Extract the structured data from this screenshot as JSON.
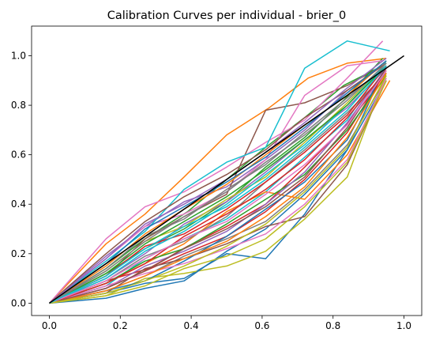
{
  "chart_data": {
    "type": "line",
    "title": "Calibration Curves per individual - brier_0",
    "xlabel": "",
    "ylabel": "",
    "xlim": [
      -0.05,
      1.05
    ],
    "ylim": [
      -0.05,
      1.12
    ],
    "xticks": [
      0.0,
      0.2,
      0.4,
      0.6,
      0.8,
      1.0
    ],
    "yticks": [
      0.0,
      0.2,
      0.4,
      0.6,
      0.8,
      1.0
    ],
    "xtick_labels": [
      "0.0",
      "0.2",
      "0.4",
      "0.6",
      "0.8",
      "1.0"
    ],
    "ytick_labels": [
      "0.0",
      "0.2",
      "0.4",
      "0.6",
      "0.8",
      "1.0"
    ],
    "grid": false,
    "legend": "none",
    "reference_line": {
      "x": [
        0,
        1
      ],
      "y": [
        0,
        1
      ],
      "color": "#000000"
    },
    "palette": [
      "#1f77b4",
      "#ff7f0e",
      "#2ca02c",
      "#d62728",
      "#9467bd",
      "#8c564b",
      "#e377c2",
      "#7f7f7f",
      "#bcbd22",
      "#17becf"
    ],
    "series": [
      {
        "x": [
          0,
          0.16,
          0.27,
          0.38,
          0.5,
          0.61,
          0.72,
          0.84,
          0.94
        ],
        "y": [
          0,
          0.04,
          0.08,
          0.1,
          0.2,
          0.18,
          0.36,
          0.62,
          0.93
        ]
      },
      {
        "x": [
          0,
          0.16,
          0.27,
          0.38,
          0.5,
          0.62,
          0.73,
          0.84,
          0.95
        ],
        "y": [
          0,
          0.24,
          0.36,
          0.51,
          0.68,
          0.79,
          0.91,
          0.97,
          0.99
        ]
      },
      {
        "x": [
          0,
          0.16,
          0.27,
          0.39,
          0.5,
          0.61,
          0.72,
          0.83,
          0.94
        ],
        "y": [
          0,
          0.14,
          0.26,
          0.37,
          0.5,
          0.63,
          0.75,
          0.88,
          0.96
        ]
      },
      {
        "x": [
          0,
          0.16,
          0.28,
          0.39,
          0.5,
          0.61,
          0.72,
          0.83,
          0.94
        ],
        "y": [
          0,
          0.09,
          0.14,
          0.23,
          0.31,
          0.4,
          0.55,
          0.71,
          0.9
        ]
      },
      {
        "x": [
          0,
          0.16,
          0.27,
          0.38,
          0.5,
          0.61,
          0.72,
          0.84,
          0.95
        ],
        "y": [
          0,
          0.19,
          0.31,
          0.41,
          0.47,
          0.58,
          0.7,
          0.86,
          0.97
        ]
      },
      {
        "x": [
          0,
          0.16,
          0.27,
          0.38,
          0.5,
          0.61,
          0.72,
          0.84,
          0.94
        ],
        "y": [
          0,
          0.11,
          0.26,
          0.35,
          0.44,
          0.78,
          0.81,
          0.88,
          0.96
        ]
      },
      {
        "x": [
          0,
          0.16,
          0.27,
          0.38,
          0.5,
          0.61,
          0.72,
          0.84,
          0.94
        ],
        "y": [
          0,
          0.26,
          0.39,
          0.45,
          0.55,
          0.65,
          0.74,
          0.91,
          1.06
        ]
      },
      {
        "x": [
          0,
          0.16,
          0.27,
          0.38,
          0.5,
          0.61,
          0.72,
          0.84,
          0.95
        ],
        "y": [
          0,
          0.05,
          0.11,
          0.19,
          0.26,
          0.33,
          0.46,
          0.64,
          0.91
        ]
      },
      {
        "x": [
          0,
          0.16,
          0.27,
          0.38,
          0.5,
          0.61,
          0.72,
          0.84,
          0.95
        ],
        "y": [
          0,
          0.03,
          0.1,
          0.12,
          0.15,
          0.21,
          0.34,
          0.51,
          0.93
        ]
      },
      {
        "x": [
          0,
          0.16,
          0.27,
          0.38,
          0.5,
          0.61,
          0.72,
          0.84,
          0.95
        ],
        "y": [
          0,
          0.07,
          0.18,
          0.26,
          0.34,
          0.45,
          0.59,
          0.74,
          0.98
        ]
      },
      {
        "x": [
          0,
          0.16,
          0.27,
          0.38,
          0.5,
          0.61,
          0.72,
          0.84,
          0.95
        ],
        "y": [
          0,
          0.02,
          0.06,
          0.09,
          0.21,
          0.3,
          0.44,
          0.62,
          0.9
        ]
      },
      {
        "x": [
          0,
          0.16,
          0.27,
          0.38,
          0.5,
          0.61,
          0.72,
          0.84,
          0.96
        ],
        "y": [
          0,
          0.08,
          0.16,
          0.24,
          0.37,
          0.45,
          0.42,
          0.6,
          0.9
        ]
      },
      {
        "x": [
          0,
          0.16,
          0.27,
          0.38,
          0.5,
          0.61,
          0.72,
          0.83,
          0.94
        ],
        "y": [
          0,
          0.12,
          0.22,
          0.3,
          0.41,
          0.55,
          0.67,
          0.82,
          0.99
        ]
      },
      {
        "x": [
          0,
          0.16,
          0.27,
          0.38,
          0.5,
          0.61,
          0.72,
          0.84,
          0.95
        ],
        "y": [
          0,
          0.06,
          0.13,
          0.2,
          0.27,
          0.37,
          0.5,
          0.69,
          0.94
        ]
      },
      {
        "x": [
          0,
          0.16,
          0.27,
          0.38,
          0.5,
          0.61,
          0.72,
          0.84,
          0.95
        ],
        "y": [
          0,
          0.1,
          0.2,
          0.32,
          0.41,
          0.53,
          0.66,
          0.79,
          0.95
        ]
      },
      {
        "x": [
          0,
          0.16,
          0.27,
          0.38,
          0.5,
          0.61,
          0.72,
          0.84,
          0.95
        ],
        "y": [
          0,
          0.04,
          0.14,
          0.18,
          0.24,
          0.31,
          0.35,
          0.56,
          0.9
        ]
      },
      {
        "x": [
          0,
          0.16,
          0.27,
          0.38,
          0.5,
          0.61,
          0.72,
          0.84,
          0.94
        ],
        "y": [
          0,
          0.18,
          0.31,
          0.36,
          0.45,
          0.58,
          0.84,
          0.96,
          0.98
        ]
      },
      {
        "x": [
          0,
          0.16,
          0.27,
          0.38,
          0.5,
          0.61,
          0.72,
          0.84,
          0.95
        ],
        "y": [
          0,
          0.09,
          0.19,
          0.25,
          0.35,
          0.49,
          0.62,
          0.77,
          0.93
        ]
      },
      {
        "x": [
          0,
          0.16,
          0.27,
          0.38,
          0.5,
          0.61,
          0.72,
          0.84,
          0.95
        ],
        "y": [
          0,
          0.13,
          0.25,
          0.31,
          0.42,
          0.51,
          0.65,
          0.81,
          0.97
        ]
      },
      {
        "x": [
          0,
          0.16,
          0.27,
          0.38,
          0.5,
          0.61,
          0.72,
          0.84,
          0.96
        ],
        "y": [
          0,
          0.17,
          0.29,
          0.46,
          0.57,
          0.63,
          0.95,
          1.06,
          1.02
        ]
      },
      {
        "x": [
          0,
          0.16,
          0.27,
          0.38,
          0.5,
          0.61,
          0.72,
          0.84,
          0.95
        ],
        "y": [
          0,
          0.05,
          0.09,
          0.17,
          0.27,
          0.38,
          0.49,
          0.66,
          0.96
        ]
      },
      {
        "x": [
          0,
          0.16,
          0.27,
          0.38,
          0.5,
          0.61,
          0.72,
          0.84,
          0.95
        ],
        "y": [
          0,
          0.15,
          0.28,
          0.38,
          0.48,
          0.6,
          0.72,
          0.84,
          0.98
        ]
      },
      {
        "x": [
          0,
          0.16,
          0.27,
          0.38,
          0.5,
          0.61,
          0.72,
          0.84,
          0.95
        ],
        "y": [
          0,
          0.08,
          0.17,
          0.22,
          0.32,
          0.42,
          0.52,
          0.7,
          0.92
        ]
      },
      {
        "x": [
          0,
          0.16,
          0.27,
          0.38,
          0.5,
          0.61,
          0.72,
          0.84,
          0.95
        ],
        "y": [
          0,
          0.11,
          0.23,
          0.28,
          0.38,
          0.49,
          0.61,
          0.76,
          0.96
        ]
      },
      {
        "x": [
          0,
          0.16,
          0.27,
          0.38,
          0.5,
          0.61,
          0.72,
          0.84,
          0.95
        ],
        "y": [
          0,
          0.06,
          0.15,
          0.21,
          0.29,
          0.4,
          0.53,
          0.73,
          0.95
        ]
      },
      {
        "x": [
          0,
          0.16,
          0.27,
          0.38,
          0.5,
          0.61,
          0.72,
          0.84,
          0.95
        ],
        "y": [
          0,
          0.2,
          0.33,
          0.43,
          0.52,
          0.62,
          0.75,
          0.86,
          0.97
        ]
      },
      {
        "x": [
          0,
          0.16,
          0.27,
          0.38,
          0.5,
          0.61,
          0.72,
          0.84,
          0.95
        ],
        "y": [
          0,
          0.07,
          0.12,
          0.16,
          0.22,
          0.28,
          0.4,
          0.58,
          0.91
        ]
      },
      {
        "x": [
          0,
          0.16,
          0.27,
          0.38,
          0.5,
          0.61,
          0.72,
          0.84,
          0.95
        ],
        "y": [
          0,
          0.14,
          0.27,
          0.34,
          0.46,
          0.56,
          0.69,
          0.83,
          0.96
        ]
      },
      {
        "x": [
          0,
          0.16,
          0.27,
          0.38,
          0.5,
          0.61,
          0.72,
          0.84,
          0.95
        ],
        "y": [
          0,
          0.03,
          0.07,
          0.14,
          0.19,
          0.26,
          0.39,
          0.57,
          0.9
        ]
      },
      {
        "x": [
          0,
          0.16,
          0.27,
          0.38,
          0.5,
          0.61,
          0.72,
          0.84,
          0.95
        ],
        "y": [
          0,
          0.1,
          0.21,
          0.29,
          0.4,
          0.52,
          0.64,
          0.8,
          0.97
        ]
      },
      {
        "x": [
          0,
          0.16,
          0.27,
          0.38,
          0.5,
          0.61,
          0.72,
          0.84,
          0.95
        ],
        "y": [
          0,
          0.16,
          0.3,
          0.39,
          0.49,
          0.59,
          0.71,
          0.85,
          0.98
        ]
      },
      {
        "x": [
          0,
          0.16,
          0.27,
          0.38,
          0.5,
          0.61,
          0.72,
          0.84,
          0.95
        ],
        "y": [
          0,
          0.05,
          0.11,
          0.18,
          0.25,
          0.35,
          0.47,
          0.67,
          0.93
        ]
      },
      {
        "x": [
          0,
          0.16,
          0.27,
          0.38,
          0.5,
          0.61,
          0.72,
          0.84,
          0.95
        ],
        "y": [
          0,
          0.12,
          0.24,
          0.33,
          0.43,
          0.54,
          0.66,
          0.8,
          0.96
        ]
      },
      {
        "x": [
          0,
          0.16,
          0.27,
          0.38,
          0.5,
          0.61,
          0.72,
          0.84,
          0.95
        ],
        "y": [
          0,
          0.08,
          0.16,
          0.27,
          0.36,
          0.46,
          0.58,
          0.75,
          0.94
        ]
      },
      {
        "x": [
          0,
          0.16,
          0.27,
          0.38,
          0.5,
          0.61,
          0.72,
          0.84,
          0.95
        ],
        "y": [
          0,
          0.18,
          0.32,
          0.4,
          0.5,
          0.61,
          0.73,
          0.87,
          0.99
        ]
      },
      {
        "x": [
          0,
          0.16,
          0.27,
          0.38,
          0.5,
          0.61,
          0.72,
          0.84,
          0.95
        ],
        "y": [
          0,
          0.06,
          0.13,
          0.22,
          0.3,
          0.39,
          0.51,
          0.71,
          0.95
        ]
      },
      {
        "x": [
          0,
          0.16,
          0.27,
          0.38,
          0.5,
          0.61,
          0.72,
          0.84,
          0.95
        ],
        "y": [
          0,
          0.09,
          0.18,
          0.26,
          0.33,
          0.44,
          0.56,
          0.72,
          0.94
        ]
      },
      {
        "x": [
          0,
          0.16,
          0.27,
          0.38,
          0.5,
          0.61,
          0.72,
          0.84,
          0.95
        ],
        "y": [
          0,
          0.13,
          0.25,
          0.35,
          0.45,
          0.57,
          0.68,
          0.82,
          0.97
        ]
      },
      {
        "x": [
          0,
          0.16,
          0.27,
          0.38,
          0.5,
          0.61,
          0.72,
          0.84,
          0.95
        ],
        "y": [
          0,
          0.04,
          0.09,
          0.15,
          0.23,
          0.32,
          0.45,
          0.63,
          0.92
        ]
      },
      {
        "x": [
          0,
          0.16,
          0.27,
          0.38,
          0.5,
          0.61,
          0.72,
          0.84,
          0.95
        ],
        "y": [
          0,
          0.11,
          0.22,
          0.31,
          0.39,
          0.5,
          0.63,
          0.78,
          0.96
        ]
      }
    ]
  }
}
